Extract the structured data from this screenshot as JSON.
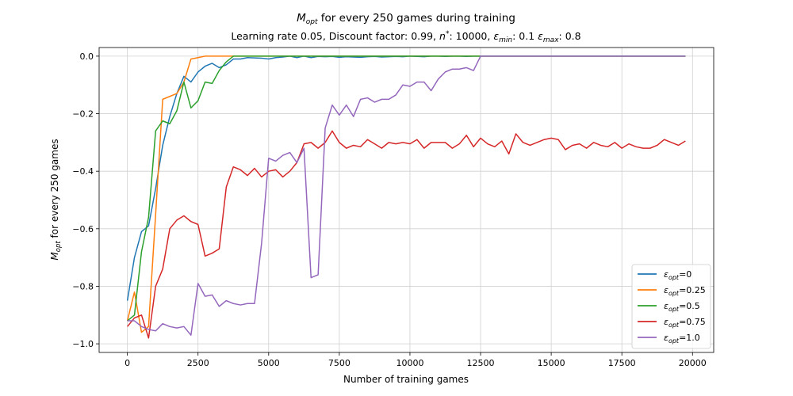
{
  "chart_data": {
    "type": "line",
    "title": "$M_{opt}$ for every 250 games during training",
    "title_parts": {
      "m": "M",
      "sub": "opt",
      "rest": " for every 250 games during training"
    },
    "subtitle": "Learning rate 0.05, Discount factor: 0.99, $n^*$: 10000, $\\epsilon_{min}$: 0.1 $\\epsilon_{max}$: 0.8",
    "subtitle_parts": {
      "p1": "Learning rate 0.05, Discount factor: 0.99, ",
      "n": "n",
      "star": "*",
      "p2": ": 10000, ",
      "eps1": "ε",
      "eps1_sub": "min",
      "p3": ": 0.1 ",
      "eps2": "ε",
      "eps2_sub": "max",
      "p4": ": 0.8"
    },
    "xlabel": "Number of training games",
    "ylabel": "$M_{opt}$ for every 250 games",
    "ylabel_parts": {
      "m": "M",
      "sub": "opt",
      "rest": " for every 250 games"
    },
    "xlim": [
      -1000,
      20750
    ],
    "ylim": [
      -1.03,
      0.03
    ],
    "x_ticks": [
      0,
      2500,
      5000,
      7500,
      10000,
      12500,
      15000,
      17500,
      20000
    ],
    "y_ticks": [
      0.0,
      -0.2,
      -0.4,
      -0.6,
      -0.8,
      -1.0
    ],
    "y_tick_labels": [
      "0.0",
      "−0.2",
      "−0.4",
      "−0.6",
      "−0.8",
      "−1.0"
    ],
    "grid": true,
    "legend_position": "lower-right",
    "x_start": 0,
    "x_step": 250,
    "series": [
      {
        "name": "$\\epsilon_{opt}$=0",
        "label_main": "ε",
        "label_sub": "opt",
        "label_value": "=0",
        "color": "#1f77b4",
        "values": [
          -0.85,
          -0.7,
          -0.61,
          -0.59,
          -0.46,
          -0.31,
          -0.21,
          -0.13,
          -0.07,
          -0.09,
          -0.055,
          -0.035,
          -0.025,
          -0.04,
          -0.03,
          -0.01,
          -0.01,
          -0.005,
          -0.006,
          -0.007,
          -0.01,
          -0.005,
          -0.003,
          0,
          -0.005,
          0,
          -0.005,
          -0.001,
          -0.002,
          -0.001,
          -0.004,
          -0.002,
          -0.003,
          -0.004,
          -0.002,
          -0.001,
          -0.003,
          -0.002,
          -0.001,
          -0.002,
          0,
          -0.001,
          -0.002,
          0,
          0,
          -0.001,
          0,
          0,
          -0.001,
          0,
          0,
          0,
          0,
          0,
          0,
          0,
          0,
          0,
          0,
          0,
          0,
          0,
          0,
          0,
          0,
          0,
          0,
          0,
          0,
          0,
          0,
          0,
          0,
          0,
          0,
          0,
          0,
          0,
          0,
          0
        ]
      },
      {
        "name": "$\\epsilon_{opt}$=0.25",
        "label_main": "ε",
        "label_sub": "opt",
        "label_value": "=0.25",
        "color": "#ff7f0e",
        "values": [
          -0.92,
          -0.82,
          -0.96,
          -0.94,
          -0.55,
          -0.15,
          -0.14,
          -0.13,
          -0.09,
          -0.01,
          -0.005,
          0,
          0,
          0,
          0,
          0,
          0,
          0,
          0,
          0,
          0,
          0,
          0,
          0,
          0,
          0,
          0,
          0,
          0,
          0,
          0,
          0,
          0,
          0,
          0,
          0,
          0,
          0,
          0,
          0,
          0,
          0,
          0,
          0,
          0,
          0,
          0,
          0,
          0,
          0,
          0,
          0,
          0,
          0,
          0,
          0,
          0,
          0,
          0,
          0,
          0,
          0,
          0,
          0,
          0,
          0,
          0,
          0,
          0,
          0,
          0,
          0,
          0,
          0,
          0,
          0,
          0,
          0,
          0,
          0
        ]
      },
      {
        "name": "$\\epsilon_{opt}$=0.5",
        "label_main": "ε",
        "label_sub": "opt",
        "label_value": "=0.5",
        "color": "#2ca02c",
        "values": [
          -0.92,
          -0.9,
          -0.68,
          -0.56,
          -0.26,
          -0.225,
          -0.235,
          -0.19,
          -0.09,
          -0.18,
          -0.155,
          -0.09,
          -0.095,
          -0.05,
          -0.02,
          0,
          0,
          0,
          0,
          0,
          0,
          0,
          0,
          0,
          0,
          0,
          0,
          0,
          0,
          0,
          0,
          0,
          0,
          0,
          0,
          0,
          0,
          0,
          0,
          0,
          0,
          0,
          0,
          0,
          0,
          0,
          0,
          0,
          0,
          0,
          0,
          0,
          0,
          0,
          0,
          0,
          0,
          0,
          0,
          0,
          0,
          0,
          0,
          0,
          0,
          0,
          0,
          0,
          0,
          0,
          0,
          0,
          0,
          0,
          0,
          0,
          0,
          0,
          0,
          0
        ]
      },
      {
        "name": "$\\epsilon_{opt}$=0.75",
        "label_main": "ε",
        "label_sub": "opt",
        "label_value": "=0.75",
        "color": "#d62728",
        "values": [
          -0.94,
          -0.91,
          -0.9,
          -0.98,
          -0.8,
          -0.74,
          -0.6,
          -0.57,
          -0.555,
          -0.575,
          -0.585,
          -0.695,
          -0.685,
          -0.67,
          -0.455,
          -0.385,
          -0.395,
          -0.415,
          -0.39,
          -0.42,
          -0.4,
          -0.395,
          -0.42,
          -0.4,
          -0.37,
          -0.305,
          -0.3,
          -0.32,
          -0.3,
          -0.26,
          -0.3,
          -0.32,
          -0.31,
          -0.315,
          -0.29,
          -0.305,
          -0.32,
          -0.3,
          -0.305,
          -0.3,
          -0.305,
          -0.29,
          -0.32,
          -0.3,
          -0.3,
          -0.3,
          -0.32,
          -0.305,
          -0.275,
          -0.315,
          -0.285,
          -0.305,
          -0.315,
          -0.295,
          -0.34,
          -0.27,
          -0.3,
          -0.31,
          -0.3,
          -0.29,
          -0.285,
          -0.29,
          -0.325,
          -0.31,
          -0.305,
          -0.32,
          -0.3,
          -0.31,
          -0.315,
          -0.3,
          -0.32,
          -0.305,
          -0.315,
          -0.32,
          -0.32,
          -0.31,
          -0.29,
          -0.3,
          -0.31,
          -0.295
        ]
      },
      {
        "name": "$\\epsilon_{opt}$=1.0",
        "label_main": "ε",
        "label_sub": "opt",
        "label_value": "=1.0",
        "color": "#9467bd",
        "values": [
          -0.92,
          -0.92,
          -0.94,
          -0.95,
          -0.955,
          -0.93,
          -0.94,
          -0.945,
          -0.94,
          -0.97,
          -0.79,
          -0.835,
          -0.83,
          -0.87,
          -0.85,
          -0.86,
          -0.865,
          -0.86,
          -0.86,
          -0.65,
          -0.355,
          -0.365,
          -0.345,
          -0.335,
          -0.37,
          -0.32,
          -0.77,
          -0.76,
          -0.25,
          -0.17,
          -0.205,
          -0.17,
          -0.21,
          -0.15,
          -0.145,
          -0.16,
          -0.15,
          -0.15,
          -0.135,
          -0.1,
          -0.105,
          -0.09,
          -0.09,
          -0.12,
          -0.08,
          -0.055,
          -0.045,
          -0.045,
          -0.04,
          -0.05,
          0,
          0,
          0,
          0,
          0,
          0,
          0,
          0,
          0,
          0,
          0,
          0,
          0,
          0,
          0,
          0,
          0,
          0,
          0,
          0,
          0,
          0,
          0,
          0,
          0,
          0,
          0,
          0,
          0,
          0
        ]
      }
    ]
  }
}
